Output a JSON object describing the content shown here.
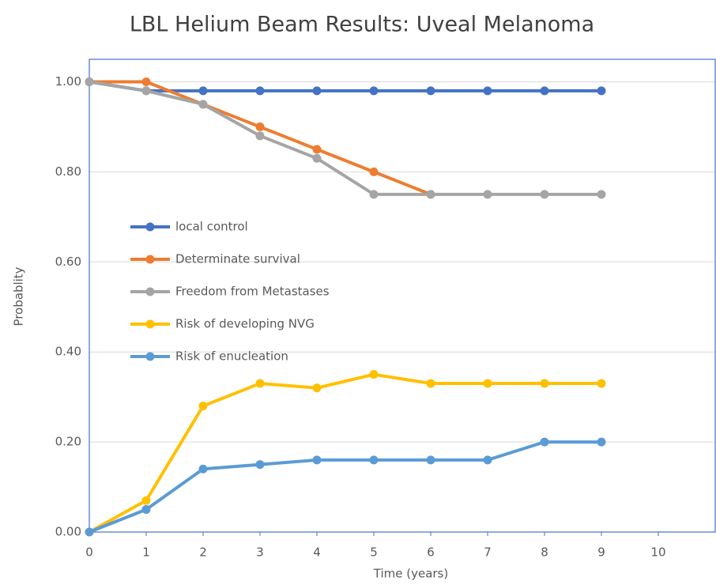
{
  "chart_data": {
    "type": "line",
    "title": "LBL Helium Beam Results: Uveal Melanoma",
    "x_label": "Time (years)",
    "y_label": "Probablity",
    "x": [
      0,
      1,
      2,
      3,
      4,
      5,
      6,
      7,
      8,
      9
    ],
    "series": [
      {
        "name": "local control",
        "color": "#4472c4",
        "values": [
          1.0,
          0.98,
          0.98,
          0.98,
          0.98,
          0.98,
          0.98,
          0.98,
          0.98,
          0.98
        ]
      },
      {
        "name": "Determinate survival",
        "color": "#ed7d31",
        "values": [
          1.0,
          1.0,
          0.95,
          0.9,
          0.85,
          0.8,
          0.75,
          null,
          null,
          null
        ]
      },
      {
        "name": "Freedom from Metastases",
        "color": "#a5a5a5",
        "values": [
          1.0,
          0.98,
          0.95,
          0.88,
          0.83,
          0.75,
          0.75,
          0.75,
          0.75,
          0.75
        ]
      },
      {
        "name": "Risk of developing NVG",
        "color": "#ffc000",
        "values": [
          0,
          0.07,
          0.28,
          0.33,
          0.32,
          0.35,
          0.33,
          0.33,
          0.33,
          0.33
        ]
      },
      {
        "name": "Risk of enucleation",
        "color": "#5b9bd5",
        "values": [
          0,
          0.05,
          0.14,
          0.15,
          0.16,
          0.16,
          0.16,
          0.16,
          0.2,
          0.2
        ]
      }
    ],
    "xlim": [
      0,
      11
    ],
    "xticks": [
      0,
      1,
      2,
      3,
      4,
      5,
      6,
      7,
      8,
      9,
      10
    ],
    "ylim": [
      0,
      1.05
    ],
    "yticks": [
      {
        "value": 0,
        "label": "0.00"
      },
      {
        "value": 0.2,
        "label": "0.20"
      },
      {
        "value": 0.4,
        "label": "0.40"
      },
      {
        "value": 0.6,
        "label": "0.60"
      },
      {
        "value": 0.8,
        "label": "0.80"
      },
      {
        "value": 1,
        "label": "1.00"
      }
    ],
    "grid": true
  }
}
